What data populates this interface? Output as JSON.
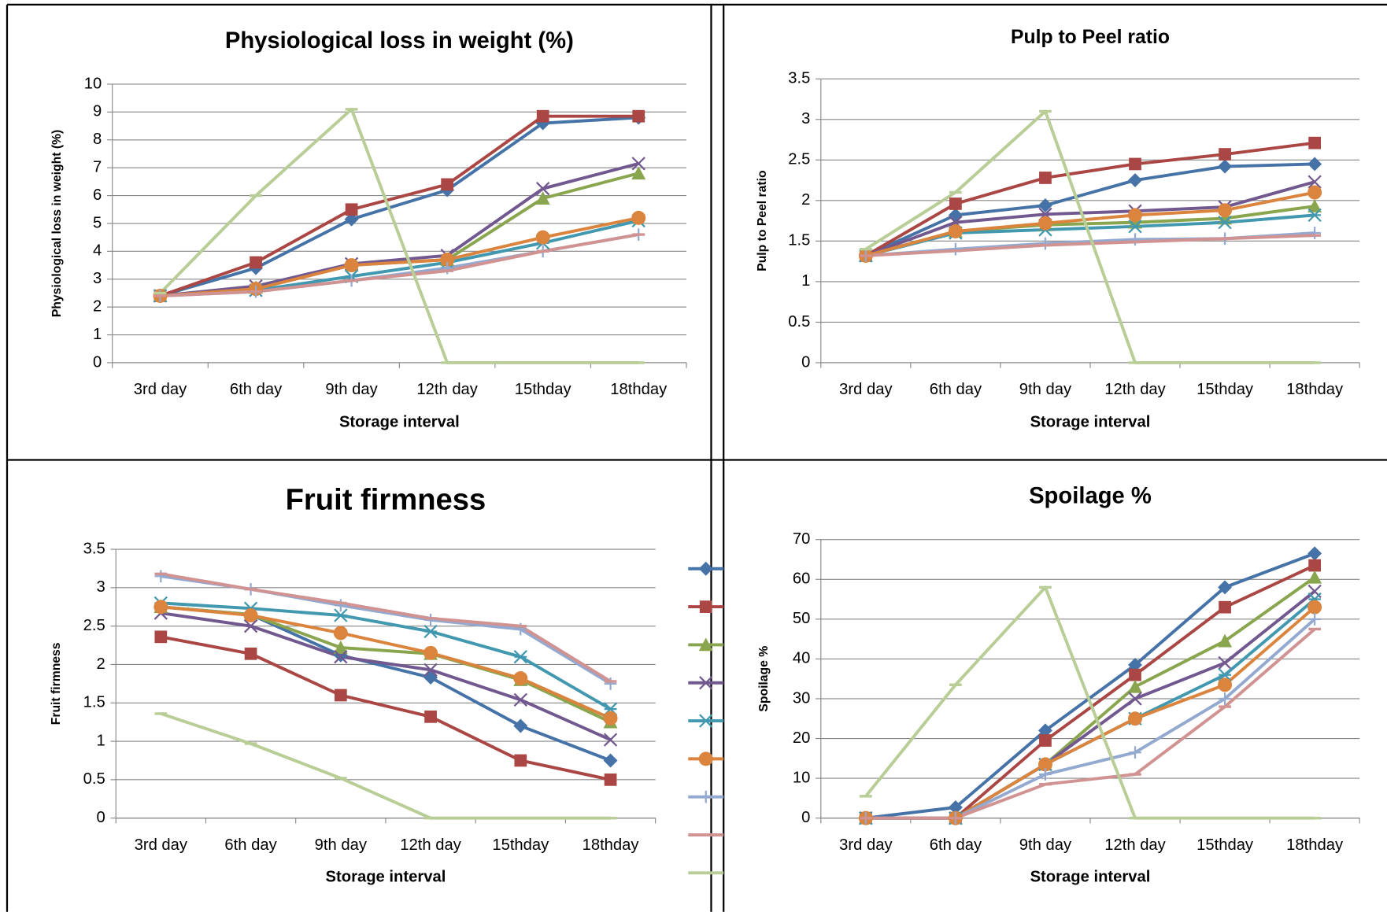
{
  "chart_data": [
    {
      "type": "line",
      "title": "Physiological loss in weight (%)",
      "x_label": "Storage interval",
      "y_label": "Physiological loss in weight (%)",
      "categories": [
        "3rd day",
        "6th day",
        "9th day",
        "12th day",
        "15thday",
        "18thday"
      ],
      "ylim": [
        0,
        10
      ],
      "yticks": [
        0,
        1,
        2,
        3,
        4,
        5,
        6,
        7,
        8,
        9,
        10
      ],
      "grid": true,
      "series": [
        {
          "color": "#4572a7",
          "marker": "diamond",
          "values": [
            2.4,
            3.4,
            5.15,
            6.2,
            8.6,
            8.8
          ]
        },
        {
          "color": "#aa4643",
          "marker": "square",
          "values": [
            2.4,
            3.6,
            5.5,
            6.4,
            8.85,
            8.85
          ]
        },
        {
          "color": "#89a54e",
          "marker": "triangle",
          "values": [
            2.4,
            2.7,
            3.5,
            3.7,
            5.9,
            6.8
          ]
        },
        {
          "color": "#71588f",
          "marker": "x",
          "values": [
            2.4,
            2.75,
            3.55,
            3.85,
            6.25,
            7.15
          ]
        },
        {
          "color": "#4198af",
          "marker": "asterisk",
          "values": [
            2.4,
            2.6,
            3.1,
            3.6,
            4.3,
            5.1
          ]
        },
        {
          "color": "#db843d",
          "marker": "circle",
          "values": [
            2.4,
            2.65,
            3.5,
            3.7,
            4.5,
            5.2
          ]
        },
        {
          "color": "#93a9cf",
          "marker": "plus",
          "values": [
            2.4,
            2.55,
            2.95,
            3.4,
            4.0,
            4.6
          ]
        },
        {
          "color": "#d19392",
          "marker": "dash",
          "values": [
            2.4,
            2.55,
            2.95,
            3.3,
            4.0,
            4.6
          ]
        },
        {
          "color": "#b9cd96",
          "marker": "dash",
          "values": [
            2.5,
            6.0,
            9.1,
            0,
            0,
            0
          ]
        }
      ]
    },
    {
      "type": "line",
      "title": "Pulp to Peel ratio",
      "x_label": "Storage interval",
      "y_label": "Pulp to Peel ratio",
      "categories": [
        "3rd day",
        "6th day",
        "9th day",
        "12th day",
        "15thday",
        "18thday"
      ],
      "ylim": [
        0,
        3.5
      ],
      "yticks": [
        0,
        0.5,
        1,
        1.5,
        2,
        2.5,
        3,
        3.5
      ],
      "grid": true,
      "series": [
        {
          "color": "#4572a7",
          "marker": "diamond",
          "values": [
            1.32,
            1.82,
            1.94,
            2.25,
            2.42,
            2.45
          ]
        },
        {
          "color": "#aa4643",
          "marker": "square",
          "values": [
            1.32,
            1.96,
            2.28,
            2.45,
            2.57,
            2.71
          ]
        },
        {
          "color": "#89a54e",
          "marker": "triangle",
          "values": [
            1.32,
            1.62,
            1.7,
            1.73,
            1.78,
            1.93
          ]
        },
        {
          "color": "#71588f",
          "marker": "x",
          "values": [
            1.32,
            1.73,
            1.83,
            1.87,
            1.92,
            2.23
          ]
        },
        {
          "color": "#4198af",
          "marker": "asterisk",
          "values": [
            1.32,
            1.6,
            1.64,
            1.68,
            1.73,
            1.82
          ]
        },
        {
          "color": "#db843d",
          "marker": "circle",
          "values": [
            1.32,
            1.62,
            1.72,
            1.82,
            1.88,
            2.1
          ]
        },
        {
          "color": "#93a9cf",
          "marker": "plus",
          "values": [
            1.32,
            1.4,
            1.47,
            1.52,
            1.53,
            1.6
          ]
        },
        {
          "color": "#d19392",
          "marker": "dash",
          "values": [
            1.32,
            1.38,
            1.45,
            1.49,
            1.53,
            1.57
          ]
        },
        {
          "color": "#b9cd96",
          "marker": "dash",
          "values": [
            1.4,
            2.1,
            3.1,
            0,
            0,
            0
          ]
        }
      ]
    },
    {
      "type": "line",
      "title": "Fruit firmness",
      "x_label": "Storage interval",
      "y_label": "Fruit firmness",
      "categories": [
        "3rd day",
        "6th day",
        "9th day",
        "12th day",
        "15thday",
        "18thday"
      ],
      "ylim": [
        0,
        3.5
      ],
      "yticks": [
        0,
        0.5,
        1,
        1.5,
        2,
        2.5,
        3,
        3.5
      ],
      "grid": true,
      "legend": "right",
      "series": [
        {
          "color": "#4572a7",
          "marker": "diamond",
          "values": [
            2.75,
            2.65,
            2.12,
            1.83,
            1.2,
            0.75
          ]
        },
        {
          "color": "#aa4643",
          "marker": "square",
          "values": [
            2.36,
            2.14,
            1.6,
            1.32,
            0.75,
            0.5
          ]
        },
        {
          "color": "#89a54e",
          "marker": "triangle",
          "values": [
            2.75,
            2.65,
            2.22,
            2.14,
            1.8,
            1.25
          ]
        },
        {
          "color": "#71588f",
          "marker": "x",
          "values": [
            2.67,
            2.5,
            2.1,
            1.93,
            1.54,
            1.02
          ]
        },
        {
          "color": "#4198af",
          "marker": "asterisk",
          "values": [
            2.8,
            2.73,
            2.64,
            2.43,
            2.1,
            1.42
          ]
        },
        {
          "color": "#db843d",
          "marker": "circle",
          "values": [
            2.75,
            2.64,
            2.41,
            2.15,
            1.82,
            1.3
          ]
        },
        {
          "color": "#93a9cf",
          "marker": "plus",
          "values": [
            3.15,
            2.98,
            2.77,
            2.58,
            2.46,
            1.75
          ]
        },
        {
          "color": "#d19392",
          "marker": "dash",
          "values": [
            3.18,
            2.98,
            2.8,
            2.6,
            2.5,
            1.78
          ]
        },
        {
          "color": "#b9cd96",
          "marker": "dash",
          "values": [
            1.36,
            0.97,
            0.52,
            0,
            0,
            0
          ]
        }
      ]
    },
    {
      "type": "line",
      "title": "Spoilage %",
      "x_label": "Storage interval",
      "y_label": "Spoilage %",
      "categories": [
        "3rd day",
        "6th day",
        "9th day",
        "12th day",
        "15thday",
        "18thday"
      ],
      "ylim": [
        0,
        70
      ],
      "yticks": [
        0,
        10,
        20,
        30,
        40,
        50,
        60,
        70
      ],
      "grid": true,
      "series": [
        {
          "color": "#4572a7",
          "marker": "diamond",
          "values": [
            0,
            2.7,
            22,
            38.5,
            58,
            66.5
          ]
        },
        {
          "color": "#aa4643",
          "marker": "square",
          "values": [
            0,
            0,
            19.5,
            36,
            53,
            63.5
          ]
        },
        {
          "color": "#89a54e",
          "marker": "triangle",
          "values": [
            0,
            0,
            13.5,
            33,
            44.5,
            60.5
          ]
        },
        {
          "color": "#71588f",
          "marker": "x",
          "values": [
            0,
            0,
            13.5,
            30,
            39,
            57
          ]
        },
        {
          "color": "#4198af",
          "marker": "asterisk",
          "values": [
            0,
            0,
            13.5,
            25,
            36,
            55
          ]
        },
        {
          "color": "#db843d",
          "marker": "circle",
          "values": [
            0,
            0,
            13.5,
            25,
            33.5,
            53
          ]
        },
        {
          "color": "#93a9cf",
          "marker": "plus",
          "values": [
            0,
            0,
            11,
            16.5,
            30,
            50
          ]
        },
        {
          "color": "#d19392",
          "marker": "dash",
          "values": [
            0,
            0,
            8.5,
            11,
            28,
            47.5
          ]
        },
        {
          "color": "#b9cd96",
          "marker": "dash",
          "values": [
            5.5,
            33.5,
            58,
            0,
            0,
            0
          ]
        }
      ]
    }
  ]
}
